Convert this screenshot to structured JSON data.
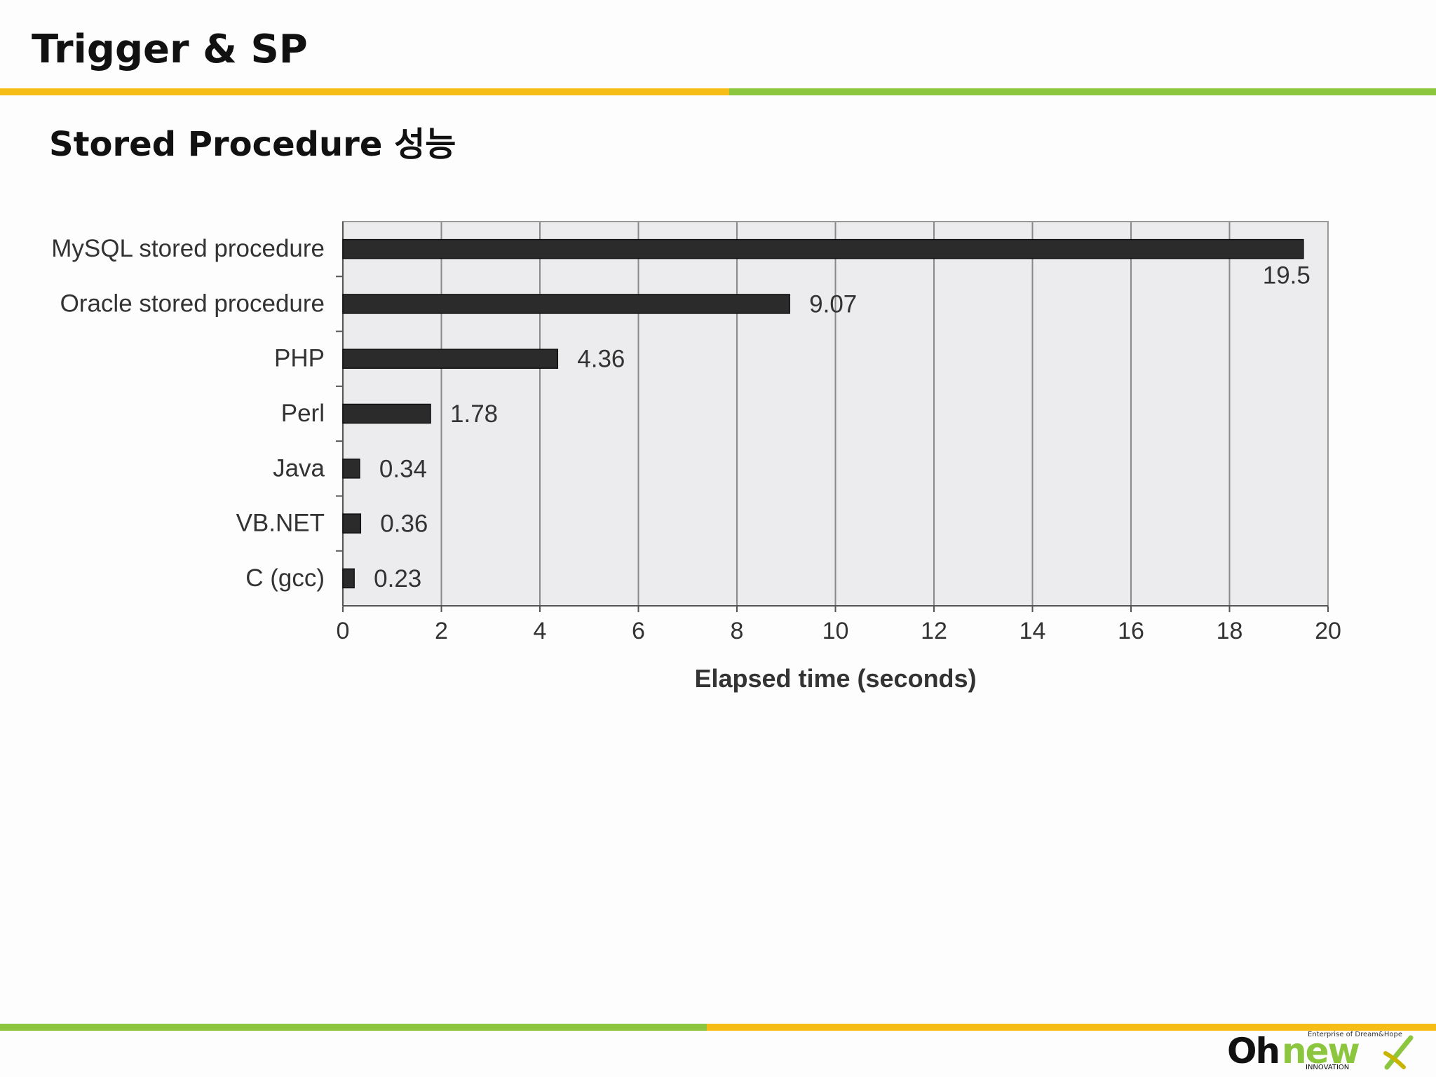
{
  "slide": {
    "title": "Trigger & SP",
    "subtitle": "Stored Procedure 성능"
  },
  "colors": {
    "accent_yellow": "#f6bd16",
    "accent_green": "#8cc63f",
    "bar": "#2b2b2b",
    "plot_bg": "#ececee",
    "grid": "#8a8a8a"
  },
  "chart_data": {
    "type": "bar",
    "orientation": "horizontal",
    "categories": [
      "MySQL stored procedure",
      "Oracle stored procedure",
      "PHP",
      "Perl",
      "Java",
      "VB.NET",
      "C (gcc)"
    ],
    "values": [
      19.5,
      9.07,
      4.36,
      1.78,
      0.34,
      0.36,
      0.23
    ],
    "value_labels": [
      "19.5",
      "9.07",
      "4.36",
      "1.78",
      "0.34",
      "0.36",
      "0.23"
    ],
    "xlabel": "Elapsed time (seconds)",
    "ylabel": "",
    "xlim": [
      0,
      20
    ],
    "xticks": [
      0,
      2,
      4,
      6,
      8,
      10,
      12,
      14,
      16,
      18,
      20
    ],
    "grid": "vertical",
    "legend": "none"
  },
  "logo": {
    "name_part1": "Oh",
    "name_part2": "new",
    "tagline": "Enterprise of Dream&Hope",
    "subline": "INNOVATION"
  }
}
